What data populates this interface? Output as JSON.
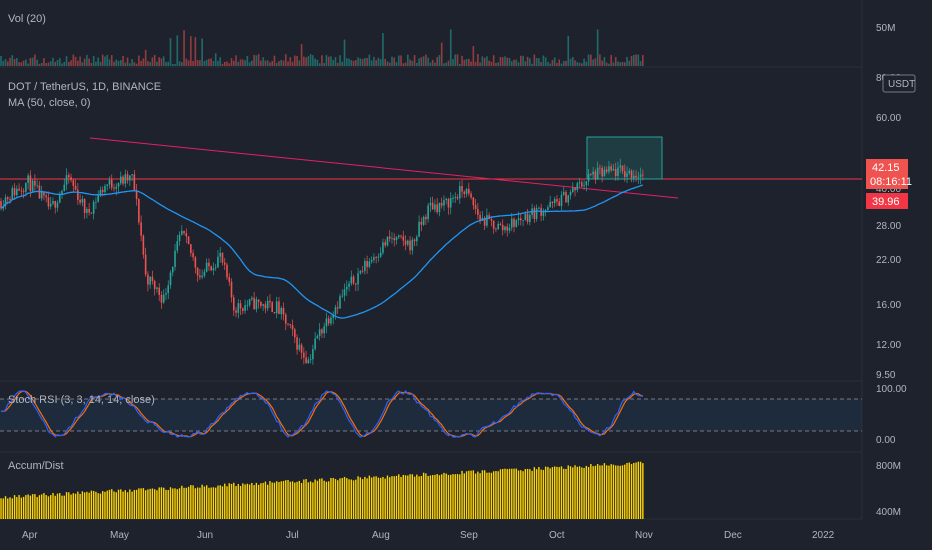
{
  "panes": {
    "volume": {
      "title": "Vol (20)"
    },
    "price": {
      "title": "DOT / TetherUS, 1D, BINANCE",
      "indicator": "MA (50, close, 0)",
      "currency": "USDT"
    },
    "stoch": {
      "title": "Stoch RSI (3, 3, 14, 14, close)"
    },
    "accum": {
      "title": "Accum/Dist"
    }
  },
  "axis_labels": {
    "volume": [
      "50M"
    ],
    "price": [
      "80.00",
      "60.00",
      "40.00",
      "28.00",
      "22.00",
      "16.00",
      "12.00",
      "9.50"
    ],
    "stoch": [
      "100.00",
      "0.00"
    ],
    "accum": [
      "800M",
      "400M"
    ]
  },
  "price_tags": {
    "last": "42.15",
    "countdown": "08:16:11",
    "level": "39.96"
  },
  "x_labels": [
    "Apr",
    "May",
    "Jun",
    "Jul",
    "Aug",
    "Sep",
    "Oct",
    "Nov",
    "Dec",
    "2022"
  ],
  "colors": {
    "up": "#26a69a",
    "down": "#ef5350",
    "ma": "#2196f3",
    "trendline": "#e91e63",
    "horizontal": "#f23645",
    "accum": "#ffd600",
    "stoch_k": "#2962ff",
    "stoch_d": "#ff6d00",
    "box": "#26a69a"
  },
  "chart_data": {
    "type": "candlestick",
    "symbol": "DOT / TetherUS",
    "interval": "1D",
    "exchange": "BINANCE",
    "price_scale": "log",
    "monthly_closes": [
      {
        "month": "Apr",
        "close": 38
      },
      {
        "month": "May",
        "close": 19
      },
      {
        "month": "Jun",
        "close": 15.5
      },
      {
        "month": "Jul",
        "close": 14
      },
      {
        "month": "Aug",
        "close": 27
      },
      {
        "month": "Sep",
        "close": 29
      },
      {
        "month": "Oct",
        "close": 42
      }
    ],
    "last_price": 42.15,
    "horizontal_level": 39.96
  }
}
